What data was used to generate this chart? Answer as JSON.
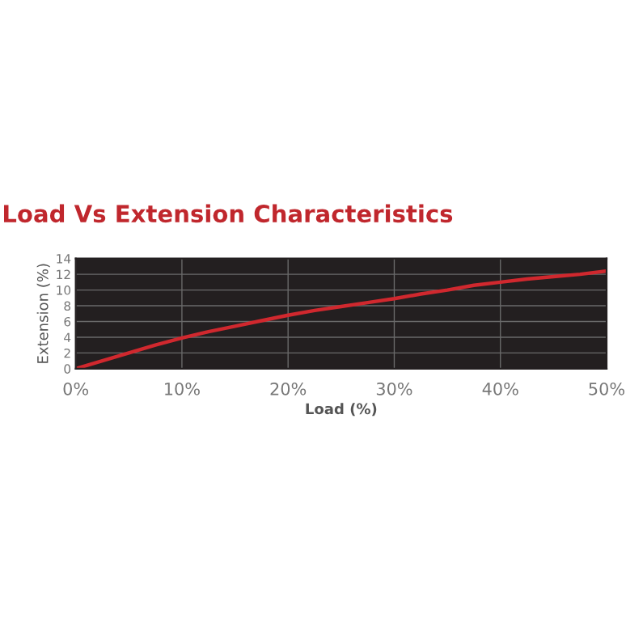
{
  "chart_data": {
    "type": "line",
    "title": "Load Vs Extension Characteristics",
    "xlabel": "Load (%)",
    "ylabel": "Extension (%)",
    "x": [
      0,
      2.5,
      5,
      7.5,
      10,
      12.5,
      15,
      17.5,
      20,
      22.5,
      25,
      27.5,
      30,
      32.5,
      35,
      37.5,
      40,
      42.5,
      45,
      47.5,
      50
    ],
    "series": [
      {
        "color": "#d0282e",
        "values": [
          0,
          1,
          2,
          3,
          3.9,
          4.7,
          5.4,
          6.1,
          6.8,
          7.4,
          7.9,
          8.4,
          8.9,
          9.5,
          10,
          10.6,
          11,
          11.4,
          11.7,
          12,
          12.4
        ]
      }
    ],
    "xlim": [
      0,
      50
    ],
    "xticks": [
      {
        "value": 0,
        "label": "0%"
      },
      {
        "value": 10,
        "label": "10%"
      },
      {
        "value": 20,
        "label": "20%"
      },
      {
        "value": 30,
        "label": "30%"
      },
      {
        "value": 40,
        "label": "40%"
      },
      {
        "value": 50,
        "label": "50%"
      }
    ],
    "ylim": [
      0,
      14
    ],
    "yticks": [
      0,
      2,
      4,
      6,
      8,
      10,
      12,
      14
    ],
    "grid": true,
    "marker": "none",
    "line_style": "solid"
  }
}
